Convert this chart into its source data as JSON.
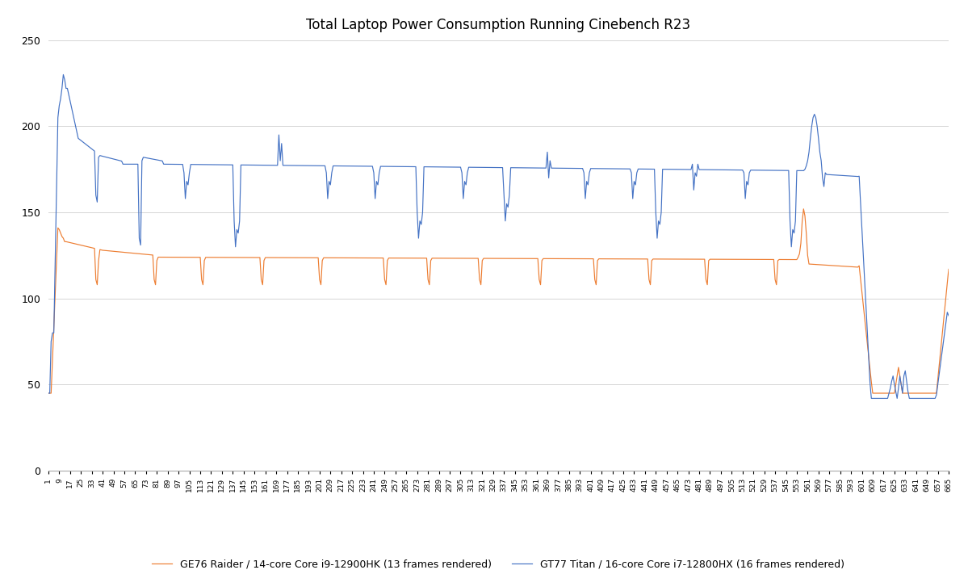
{
  "title": "Total Laptop Power Consumption Running Cinebench R23",
  "ylim": [
    0,
    250
  ],
  "yticks": [
    0,
    50,
    100,
    150,
    200,
    250
  ],
  "bg_color": "#ffffff",
  "grid_color": "#d5d5d5",
  "orange_label": "GE76 Raider / 14-core Core i9-12900HK (13 frames rendered)",
  "blue_label": "GT77 Titan / 16-core Core i7-12800HX (16 frames rendered)",
  "orange_color": "#ED7D31",
  "blue_color": "#4472C4",
  "title_fontsize": 12,
  "N": 665
}
